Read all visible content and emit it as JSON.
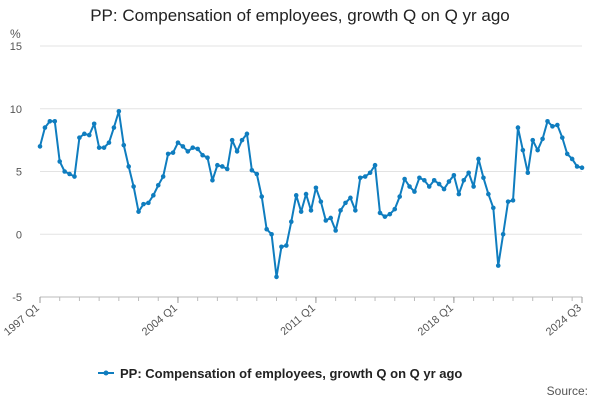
{
  "chart_data": {
    "type": "line",
    "title": "PP: Compensation of employees, growth Q on Q yr ago",
    "ylabel": "%",
    "xlabel": "",
    "ylim": [
      -5,
      15
    ],
    "yticks": [
      -5,
      0,
      5,
      10,
      15
    ],
    "x_tick_labels": [
      "1997 Q1",
      "2004 Q1",
      "2011 Q1",
      "2018 Q1",
      "2024 Q3"
    ],
    "grid": true,
    "legend_position": "bottom",
    "source_label": "Source:",
    "series": [
      {
        "name": "PP: Compensation of employees, growth Q on Q yr ago",
        "color": "#0f7dbf",
        "x_start": "1997 Q1",
        "x_end": "2024 Q3",
        "values": [
          7.0,
          8.5,
          9.0,
          9.0,
          5.8,
          5.0,
          4.8,
          4.6,
          7.7,
          8.0,
          7.9,
          8.8,
          6.9,
          6.9,
          7.3,
          8.5,
          9.8,
          7.1,
          5.4,
          3.8,
          1.8,
          2.4,
          2.5,
          3.1,
          3.9,
          4.6,
          6.4,
          6.5,
          7.3,
          7.0,
          6.6,
          6.9,
          6.8,
          6.3,
          6.1,
          4.3,
          5.5,
          5.4,
          5.2,
          7.5,
          6.6,
          7.5,
          8.0,
          5.1,
          4.8,
          3.0,
          0.4,
          0.0,
          -3.4,
          -1.0,
          -0.9,
          1.0,
          3.1,
          1.8,
          3.2,
          1.9,
          3.7,
          2.6,
          1.1,
          1.3,
          0.3,
          1.9,
          2.5,
          2.9,
          1.9,
          4.5,
          4.6,
          4.9,
          5.5,
          1.7,
          1.4,
          1.6,
          2.0,
          3.0,
          4.4,
          3.8,
          3.4,
          4.5,
          4.3,
          3.8,
          4.3,
          4.0,
          3.6,
          4.2,
          4.7,
          3.2,
          4.3,
          4.9,
          3.8,
          6.0,
          4.5,
          3.2,
          2.1,
          -2.5,
          0.0,
          2.6,
          2.7,
          8.5,
          6.7,
          4.9,
          7.5,
          6.7,
          7.6,
          9.0,
          8.6,
          8.7,
          7.7,
          6.4,
          6.0,
          5.4,
          5.3
        ]
      }
    ]
  }
}
